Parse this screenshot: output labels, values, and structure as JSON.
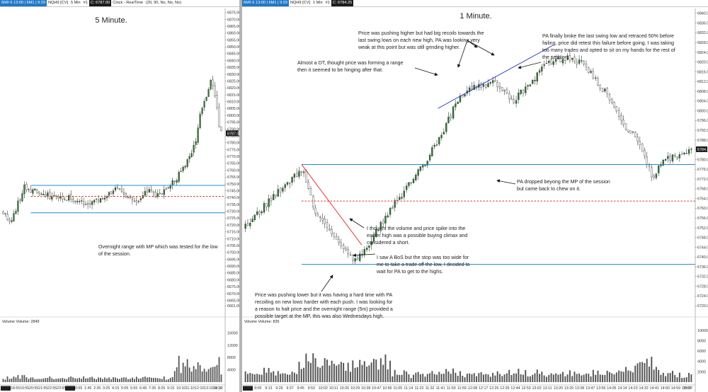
{
  "left": {
    "titlebar": {
      "symbol_box": "6M0 6 13:00 | 6M1 | 9:29",
      "instrument": "NQH9 [CV]",
      "interval": "5 Min",
      "info": "#1",
      "price_box": "C: 6787.00",
      "feed": "Clock - RealTime",
      "settings": "(20, 90, No, No, No)"
    },
    "chart_data": {
      "type": "candlestick",
      "title": "5 Minute.",
      "ylim": [
        6654,
        6878
      ],
      "y_ticks": [
        6661,
        6665,
        6670,
        6675,
        6680,
        6685,
        6690,
        6695,
        6700,
        6705,
        6710,
        6715,
        6720,
        6725,
        6730,
        6735,
        6740,
        6745,
        6750,
        6755,
        6760,
        6765,
        6770,
        6775,
        6780,
        6785,
        6790,
        6795,
        6800,
        6805,
        6810,
        6815,
        6820,
        6825,
        6830,
        6835,
        6840,
        6845,
        6850,
        6855,
        6860,
        6865,
        6870,
        6875
      ],
      "y_tick_labels": [
        "6661.00",
        "6665.00",
        "6670.00",
        "6675.00",
        "6680.00",
        "6685.00",
        "6690.00",
        "6695.00",
        "6700.00",
        "6705.00",
        "6710.00",
        "6715.00",
        "6720.00",
        "6725.00",
        "6730.00",
        "6735.00",
        "6740.00",
        "6745.00",
        "6750.00",
        "6755.00",
        "6760.00",
        "6765.00",
        "6770.00",
        "6775.00",
        "6780.00",
        "6785.00",
        "6790.00",
        "6795.00",
        "6800.00",
        "6805.00",
        "6810.00",
        "6815.00",
        "6820.00",
        "6825.00",
        "6830.00",
        "6835.00",
        "6840.00",
        "6845.00",
        "6850.00",
        "6855.00",
        "6860.00",
        "6865.00",
        "6870.00",
        "6875.00"
      ],
      "x_labels": [
        "1-17",
        "18:55",
        "19:55",
        "20:55",
        "21:55",
        "22:55",
        "23:55",
        "1-18",
        "0:55",
        "1:45",
        "2:35",
        "3:25",
        "4:15",
        "5:05",
        "5:55",
        "6:45",
        "7:35",
        "8:25",
        "9:15",
        "10:10",
        "11:10",
        "12:10",
        "13:10",
        "14:10",
        "15:10"
      ],
      "x_labels_highlight": [
        0,
        7
      ],
      "price_path": [
        [
          0,
          6730
        ],
        [
          0.04,
          6722
        ],
        [
          0.1,
          6748
        ],
        [
          0.18,
          6742
        ],
        [
          0.3,
          6740
        ],
        [
          0.38,
          6736
        ],
        [
          0.45,
          6740
        ],
        [
          0.52,
          6746
        ],
        [
          0.55,
          6742
        ],
        [
          0.6,
          6737
        ],
        [
          0.67,
          6745
        ],
        [
          0.7,
          6740
        ],
        [
          0.78,
          6752
        ],
        [
          0.82,
          6760
        ],
        [
          0.85,
          6770
        ],
        [
          0.88,
          6782
        ],
        [
          0.9,
          6800
        ],
        [
          0.93,
          6815
        ],
        [
          0.95,
          6826
        ],
        [
          0.97,
          6812
        ],
        [
          0.985,
          6793
        ],
        [
          1.0,
          6787
        ]
      ],
      "current_price": 6787,
      "current_price_label": "6787.00",
      "lines": [
        {
          "kind": "horizontal",
          "value": 6749,
          "style": "solid",
          "color": "#1f8dd6",
          "x_from": 0.13,
          "x_to": 1.0
        },
        {
          "kind": "horizontal",
          "value": 6741,
          "style": "dashed",
          "color": "#d23a2a",
          "x_from": 0.13,
          "x_to": 1.0
        },
        {
          "kind": "horizontal",
          "value": 6729,
          "style": "solid",
          "color": "#1f8dd6",
          "x_from": 0.13,
          "x_to": 1.0
        }
      ],
      "annotations": [
        "Overnight range with MP which was tested for the low",
        "of the session."
      ],
      "volume": {
        "label": "Volume  Volume: 2849",
        "ylim": [
          0,
          18500
        ],
        "y_ticks": [
          4000,
          8000,
          12000,
          16000
        ],
        "y_tick_labels": [
          "4000",
          "8000",
          "12000",
          "16000"
        ]
      }
    }
  },
  "right": {
    "titlebar": {
      "symbol_box": "6M0 6 13:00 | 6M1 | 9:29",
      "instrument": "NQH9 [CV]",
      "interval": "1 Min",
      "info": "#1",
      "price_box": "C: 6784.25"
    },
    "chart_data": {
      "type": "candlestick",
      "title": "1 Minute.",
      "ylim": [
        6716,
        6842
      ],
      "y_ticks": [
        6720,
        6724,
        6728,
        6732,
        6736,
        6740,
        6744,
        6748,
        6752,
        6756,
        6760,
        6764,
        6768,
        6772,
        6776,
        6780,
        6784,
        6788,
        6792,
        6796,
        6800,
        6804,
        6808,
        6812,
        6816,
        6820,
        6824,
        6828,
        6832,
        6836,
        6840
      ],
      "y_tick_labels": [
        "6720.00",
        "6724.00",
        "6728.00",
        "6732.00",
        "6736.00",
        "6740.00",
        "6744.00",
        "6748.00",
        "6752.00",
        "6756.00",
        "6760.00",
        "6764.00",
        "6768.00",
        "6772.00",
        "6776.00",
        "6780.00",
        "6784.00",
        "6788.00",
        "6792.00",
        "6796.00",
        "6800.00",
        "6804.00",
        "6808.00",
        "6812.00",
        "6816.00",
        "6820.00",
        "6824.00",
        "6828.00",
        "6832.00",
        "6836.00",
        "6840.00"
      ],
      "x_labels": [
        "1-18",
        "9:05",
        "9:13",
        "9:29",
        "9:37",
        "9:45",
        "9:53",
        "10:02",
        "10:11",
        "10:20",
        "10:29",
        "10:38",
        "10:47",
        "10:56",
        "11:05",
        "11:14",
        "11:23",
        "11:32",
        "11:41",
        "11:50",
        "11:59",
        "12:08",
        "12:17",
        "12:26",
        "12:35",
        "12:44",
        "12:53",
        "13:02",
        "13:11",
        "13:20",
        "13:29",
        "13:38",
        "13:47",
        "13:56",
        "14:05",
        "14:14",
        "14:23",
        "14:32",
        "14:41",
        "14:50",
        "14:59",
        "15:08",
        "15:17"
      ],
      "x_labels_highlight": [
        0
      ],
      "price_path": [
        [
          0,
          6752
        ],
        [
          0.07,
          6766
        ],
        [
          0.13,
          6776
        ],
        [
          0.16,
          6758
        ],
        [
          0.2,
          6748
        ],
        [
          0.25,
          6738
        ],
        [
          0.28,
          6746
        ],
        [
          0.32,
          6758
        ],
        [
          0.36,
          6768
        ],
        [
          0.4,
          6778
        ],
        [
          0.44,
          6790
        ],
        [
          0.48,
          6806
        ],
        [
          0.52,
          6810
        ],
        [
          0.56,
          6812
        ],
        [
          0.6,
          6804
        ],
        [
          0.64,
          6812
        ],
        [
          0.68,
          6820
        ],
        [
          0.72,
          6822
        ],
        [
          0.75,
          6820
        ],
        [
          0.78,
          6814
        ],
        [
          0.82,
          6804
        ],
        [
          0.85,
          6794
        ],
        [
          0.88,
          6788
        ],
        [
          0.91,
          6773
        ],
        [
          0.94,
          6780
        ],
        [
          0.97,
          6782
        ],
        [
          1.0,
          6784
        ]
      ],
      "current_price": 6784.25,
      "current_price_label": "6784.25",
      "lines": [
        {
          "kind": "horizontal",
          "value": 6778,
          "style": "solid",
          "color": "#1f8dd6",
          "x_from": 0.128,
          "x_to": 1.0
        },
        {
          "kind": "horizontal",
          "value": 6763,
          "style": "dashed",
          "color": "#d23a2a",
          "x_from": 0.128,
          "x_to": 1.0
        },
        {
          "kind": "horizontal",
          "value": 6737,
          "style": "solid",
          "color": "#1f8dd6",
          "x_from": 0.128,
          "x_to": 1.0
        },
        {
          "kind": "trend",
          "from": [
            0.128,
            6778
          ],
          "to": [
            0.262,
            6745
          ],
          "color": "#e02020"
        },
        {
          "kind": "trend",
          "from": [
            0.432,
            6801
          ],
          "to": [
            0.69,
            6827
          ],
          "color": "#1f30c8"
        }
      ],
      "annotations": {
        "dt": [
          "Almost a DT, thought price was forming a range",
          "then it seemed to be hinging after that."
        ],
        "swing": [
          "Price was pushing higher but had big recoils towards the",
          "last swing lows on each new high, PA was looking very",
          "weak at this point but was still grinding higher."
        ],
        "broke": [
          "PA finally broke the last swing low and retraced 50% before",
          "failing, price did retest this failure before going.  I was taking",
          "too many trades and opted to sit on my hands for the rest of",
          "the session."
        ],
        "volume_spike": [
          "I thought the volume and price spike into the",
          "earlier high was a possible buying climax and",
          "considered a short."
        ],
        "bos": [
          "I saw A BoS but the stop was too wide for",
          "me to take a trade off the low, I decided to",
          "wait for PA to get to the highs."
        ],
        "pushing_lower": [
          "Price was pushing lower but it was having a hard time with PA",
          "recoiling on new lows harder with each push.  I was looking for",
          "a reason to halt price and the overnight range (5m) provided a",
          "possible target at the MP, this was also Wednesdays high."
        ],
        "dropped": [
          "PA dropped beyong the MP of the session",
          "but came back to chew on it."
        ]
      },
      "volume": {
        "label": "Volume  Volume: 835",
        "ylim": [
          0,
          11000
        ],
        "y_ticks": [
          2000,
          4000,
          6000,
          8000,
          10000
        ],
        "y_tick_labels": [
          "2000",
          "4000",
          "6000",
          "8000",
          "10000"
        ]
      }
    }
  },
  "colors": {
    "up_candle": "#2e7d32",
    "down_candle": "#ffffff",
    "candle_outline": "#1a1a1a",
    "volume_bar": "#555555",
    "support_line": "#1f8dd6",
    "mp_line": "#d23a2a",
    "price_tag": "#1a1a1a"
  }
}
